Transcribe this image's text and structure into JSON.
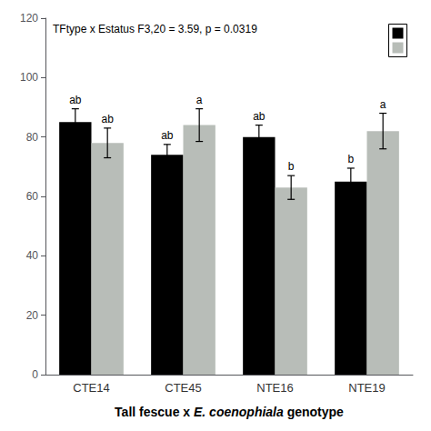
{
  "chart_data": {
    "type": "bar",
    "categories": [
      "CTE14",
      "CTE45",
      "NTE16",
      "NTE19"
    ],
    "series": [
      {
        "color": "#000000",
        "values": [
          85,
          74,
          80,
          65
        ],
        "errors": [
          4.5,
          3.5,
          4.0,
          4.5
        ],
        "labels": [
          "ab",
          "ab",
          "ab",
          "b"
        ]
      },
      {
        "color": "#b8bdb8",
        "values": [
          78,
          84,
          63,
          82
        ],
        "errors": [
          5.0,
          5.5,
          4.0,
          6.0
        ],
        "labels": [
          "ab",
          "a",
          "b",
          "a"
        ]
      }
    ],
    "xlabel": "Tall fescue x E. coenophiala genotype",
    "annotation": "TFtype x Estatus F3,20 = 3.59, p = 0.0319",
    "ylim": [
      0,
      120
    ],
    "yticks": [
      0,
      20,
      40,
      60,
      80,
      100,
      120
    ],
    "grid": false,
    "legend": "upper right"
  }
}
